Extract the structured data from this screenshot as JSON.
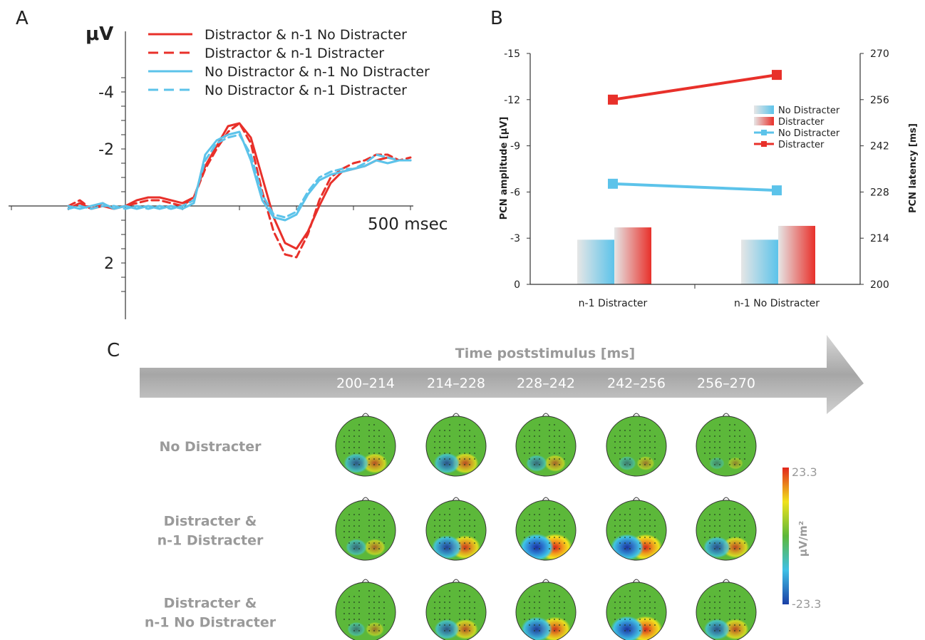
{
  "panels": {
    "a": "A",
    "b": "B",
    "c": "C"
  },
  "colors": {
    "red": "#e8302a",
    "blue": "#5cc3ea",
    "grey": "#9a9a9a"
  },
  "chart_data": [
    {
      "type": "line",
      "panel": "A",
      "ylabel": "μV",
      "xlabel": "500 msec",
      "y_inverted": true,
      "ylim": [
        -5,
        3.6
      ],
      "xlim": [
        -100,
        600
      ],
      "yticks": [
        {
          "v": -4,
          "label": "-4"
        },
        {
          "v": -2,
          "label": "-2"
        },
        {
          "v": 2,
          "label": "2"
        }
      ],
      "legend": [
        {
          "name": "Distractor & n-1 No Distracter",
          "color": "#e8302a",
          "dash": false
        },
        {
          "name": "Distractor & n-1 Distracter",
          "color": "#e8302a",
          "dash": true
        },
        {
          "name": "No Distractor & n-1 No Distracter",
          "color": "#5cc3ea",
          "dash": false
        },
        {
          "name": "No Distractor & n-1 Distracter",
          "color": "#5cc3ea",
          "dash": true
        }
      ],
      "series": [
        {
          "name": "Distractor & n-1 No Distracter",
          "color": "#e8302a",
          "dash": false,
          "order": 2,
          "x": [
            -100,
            -80,
            -60,
            -40,
            -20,
            0,
            20,
            40,
            60,
            80,
            100,
            120,
            140,
            160,
            180,
            200,
            220,
            240,
            260,
            280,
            300,
            320,
            340,
            360,
            380,
            400,
            420,
            440,
            460,
            480,
            500
          ],
          "y": [
            0.1,
            -0.1,
            0.1,
            0.0,
            0.1,
            0.0,
            -0.2,
            -0.3,
            -0.3,
            -0.2,
            -0.1,
            -0.3,
            -1.4,
            -2.1,
            -2.8,
            -2.9,
            -2.4,
            -1.0,
            0.4,
            1.3,
            1.5,
            0.9,
            0.0,
            -0.8,
            -1.2,
            -1.3,
            -1.4,
            -1.6,
            -1.7,
            -1.6,
            -1.6
          ]
        },
        {
          "name": "Distractor & n-1 Distracter",
          "color": "#e8302a",
          "dash": true,
          "order": 1,
          "x": [
            -100,
            -80,
            -60,
            -40,
            -20,
            0,
            20,
            40,
            60,
            80,
            100,
            120,
            140,
            160,
            180,
            200,
            220,
            240,
            260,
            280,
            300,
            320,
            340,
            360,
            380,
            400,
            420,
            440,
            460,
            480,
            500
          ],
          "y": [
            0.0,
            -0.2,
            0.1,
            -0.1,
            0.1,
            0.0,
            -0.1,
            -0.2,
            -0.2,
            -0.1,
            0.0,
            -0.3,
            -1.3,
            -2.0,
            -2.6,
            -2.9,
            -2.2,
            -0.5,
            0.9,
            1.7,
            1.8,
            1.0,
            -0.2,
            -1.0,
            -1.3,
            -1.5,
            -1.6,
            -1.8,
            -1.8,
            -1.6,
            -1.7
          ]
        },
        {
          "name": "No Distractor & n-1 No Distracter",
          "color": "#5cc3ea",
          "dash": false,
          "order": 4,
          "x": [
            -100,
            -80,
            -60,
            -40,
            -20,
            0,
            20,
            40,
            60,
            80,
            100,
            120,
            140,
            160,
            180,
            200,
            220,
            240,
            260,
            280,
            300,
            320,
            340,
            360,
            380,
            400,
            420,
            440,
            460,
            480,
            500
          ],
          "y": [
            0.0,
            0.1,
            0.0,
            -0.1,
            0.1,
            0.0,
            0.1,
            0.0,
            0.1,
            0.0,
            0.1,
            -0.1,
            -1.8,
            -2.3,
            -2.5,
            -2.6,
            -1.6,
            -0.2,
            0.4,
            0.5,
            0.3,
            -0.4,
            -0.9,
            -1.1,
            -1.2,
            -1.3,
            -1.4,
            -1.6,
            -1.5,
            -1.6,
            -1.6
          ]
        },
        {
          "name": "No Distractor & n-1 Distracter",
          "color": "#5cc3ea",
          "dash": true,
          "order": 3,
          "x": [
            -100,
            -80,
            -60,
            -40,
            -20,
            0,
            20,
            40,
            60,
            80,
            100,
            120,
            140,
            160,
            180,
            200,
            220,
            240,
            260,
            280,
            300,
            320,
            340,
            360,
            380,
            400,
            420,
            440,
            460,
            480,
            500
          ],
          "y": [
            0.1,
            0.0,
            0.1,
            0.0,
            0.0,
            0.1,
            0.0,
            0.1,
            0.0,
            0.1,
            0.0,
            -0.2,
            -1.6,
            -2.2,
            -2.4,
            -2.5,
            -1.8,
            -0.4,
            0.3,
            0.4,
            0.2,
            -0.5,
            -1.0,
            -1.2,
            -1.3,
            -1.3,
            -1.5,
            -1.8,
            -1.7,
            -1.6,
            -1.6
          ]
        }
      ]
    },
    {
      "type": "bar",
      "panel": "B",
      "ylabel": "PCN amplitude [μV]",
      "y2label": "PCN latency [ms]",
      "categories": [
        "n-1 Distracter",
        "n-1 No Distracter"
      ],
      "ylim": [
        0,
        -15
      ],
      "yticks": [
        "0",
        "-3",
        "-6",
        "-9",
        "-12",
        "-15"
      ],
      "y2lim": [
        200,
        270
      ],
      "y2ticks": [
        "200",
        "214",
        "228",
        "242",
        "256",
        "270"
      ],
      "legend": [
        {
          "name": "No Distracter",
          "kind": "bar",
          "color": "#5cc3ea"
        },
        {
          "name": "Distracter",
          "kind": "bar",
          "color": "#e8302a"
        },
        {
          "name": "No Distracter",
          "kind": "line",
          "color": "#5cc3ea"
        },
        {
          "name": "Distracter",
          "kind": "line",
          "color": "#e8302a"
        }
      ],
      "bars": [
        {
          "name": "No Distracter",
          "color": "#5cc3ea",
          "values": [
            -2.9,
            -2.9
          ]
        },
        {
          "name": "Distracter",
          "color": "#e8302a",
          "values": [
            -3.7,
            -3.8
          ]
        }
      ],
      "lines": [
        {
          "name": "No Distracter",
          "color": "#5cc3ea",
          "values": [
            230.5,
            228.5
          ]
        },
        {
          "name": "Distracter",
          "color": "#e8302a",
          "values": [
            256,
            263.5
          ]
        }
      ]
    },
    {
      "type": "heatmap",
      "panel": "C",
      "title": "Time poststimulus [ms]",
      "columns": [
        "200–214",
        "214–228",
        "228–242",
        "242–256",
        "256–270"
      ],
      "rows": [
        {
          "label": [
            "No Distracter"
          ],
          "intensity": [
            0.55,
            0.6,
            0.35,
            0.18,
            0.05
          ]
        },
        {
          "label": [
            "Distracter &",
            "n-1 Distracter"
          ],
          "intensity": [
            0.35,
            0.8,
            1.0,
            0.95,
            0.65
          ]
        },
        {
          "label": [
            "Distracter &",
            "n-1 No Distracter"
          ],
          "intensity": [
            0.2,
            0.55,
            0.85,
            0.95,
            0.6
          ]
        }
      ],
      "colorbar": {
        "max_label": "23.3",
        "min_label": "-23.3",
        "unit": "μV/m²",
        "range": [
          -23.3,
          23.3
        ]
      }
    }
  ]
}
